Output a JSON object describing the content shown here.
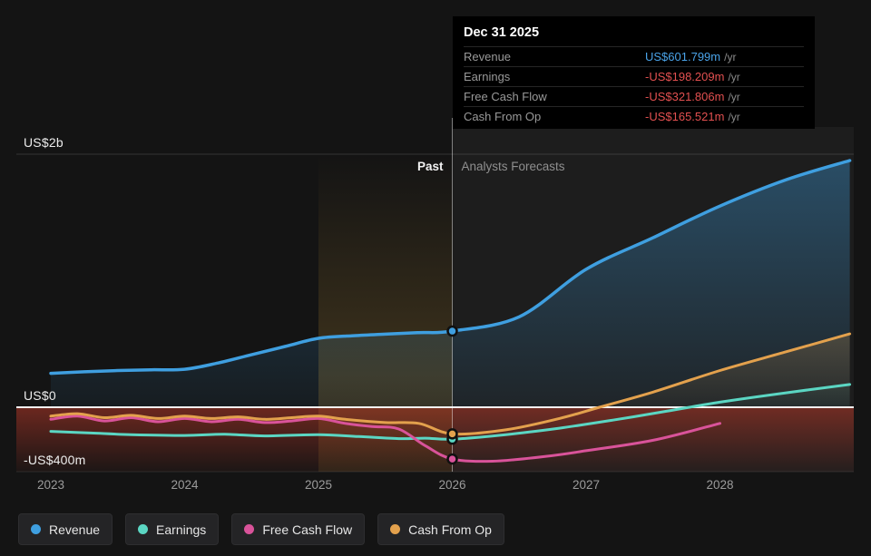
{
  "tooltip": {
    "date": "Dec 31 2025",
    "rows": [
      {
        "label": "Revenue",
        "value": "US$601.799m",
        "suffix": "/yr",
        "value_color": "#4aa3e8"
      },
      {
        "label": "Earnings",
        "value": "-US$198.209m",
        "suffix": "/yr",
        "value_color": "#e25050"
      },
      {
        "label": "Free Cash Flow",
        "value": "-US$321.806m",
        "suffix": "/yr",
        "value_color": "#e25050"
      },
      {
        "label": "Cash From Op",
        "value": "-US$165.521m",
        "suffix": "/yr",
        "value_color": "#e25050"
      }
    ]
  },
  "annotations": {
    "past": "Past",
    "forecast": "Analysts Forecasts"
  },
  "axis": {
    "y_labels": [
      {
        "text": "US$2b",
        "value_m": 2000
      },
      {
        "text": "US$0",
        "value_m": 0
      },
      {
        "text": "-US$400m",
        "value_m": -400
      }
    ],
    "x_labels": [
      "2023",
      "2024",
      "2025",
      "2026",
      "2027",
      "2028"
    ]
  },
  "legend": [
    {
      "label": "Revenue",
      "color": "#3f9fe0"
    },
    {
      "label": "Earnings",
      "color": "#5bd6c3"
    },
    {
      "label": "Free Cash Flow",
      "color": "#d9539a"
    },
    {
      "label": "Cash From Op",
      "color": "#e3a14d"
    }
  ],
  "chart_data": {
    "type": "line",
    "title": "Past and forecast Revenue, Earnings, Free Cash Flow and Cash From Op",
    "x_start": 2023,
    "x_end": 2028.97,
    "x_ticks": [
      2023,
      2024,
      2025,
      2026,
      2027,
      2028
    ],
    "divider_x": 2026.0,
    "divider_date": "Dec 31 2025",
    "y_axis": {
      "pos_max_m": 2000,
      "neg_min_m": -400,
      "unit": "US$ millions"
    },
    "series": [
      {
        "name": "Revenue",
        "color": "#3f9fe0",
        "width": 3.5,
        "fill_to_zero": true,
        "marker_value_m": 601.799,
        "points": [
          [
            2023,
            268
          ],
          [
            2023.25,
            280
          ],
          [
            2023.5,
            290
          ],
          [
            2023.75,
            296
          ],
          [
            2024,
            300
          ],
          [
            2024.25,
            350
          ],
          [
            2024.5,
            415
          ],
          [
            2024.75,
            480
          ],
          [
            2025,
            545
          ],
          [
            2025.25,
            565
          ],
          [
            2025.5,
            578
          ],
          [
            2025.75,
            590
          ],
          [
            2026,
            601.799
          ],
          [
            2026.5,
            715
          ],
          [
            2027,
            1090
          ],
          [
            2027.5,
            1340
          ],
          [
            2028,
            1590
          ],
          [
            2028.5,
            1800
          ],
          [
            2028.97,
            1950
          ]
        ]
      },
      {
        "name": "Earnings",
        "color": "#5bd6c3",
        "width": 3,
        "fill_positive": true,
        "marker_value_m": -198.209,
        "points": [
          [
            2023,
            -150
          ],
          [
            2023.3,
            -160
          ],
          [
            2023.6,
            -170
          ],
          [
            2024,
            -175
          ],
          [
            2024.3,
            -168
          ],
          [
            2024.6,
            -178
          ],
          [
            2025,
            -170
          ],
          [
            2025.3,
            -182
          ],
          [
            2025.6,
            -195
          ],
          [
            2025.8,
            -192
          ],
          [
            2026,
            -198.209
          ],
          [
            2026.4,
            -170
          ],
          [
            2026.8,
            -130
          ],
          [
            2027.2,
            -80
          ],
          [
            2027.6,
            -25
          ],
          [
            2028,
            40
          ],
          [
            2028.5,
            115
          ],
          [
            2028.97,
            180
          ]
        ]
      },
      {
        "name": "Free Cash Flow",
        "color": "#d9539a",
        "width": 3,
        "marker_value_m": -321.806,
        "points": [
          [
            2023,
            -75
          ],
          [
            2023.2,
            -55
          ],
          [
            2023.4,
            -85
          ],
          [
            2023.6,
            -65
          ],
          [
            2023.8,
            -90
          ],
          [
            2024,
            -70
          ],
          [
            2024.2,
            -90
          ],
          [
            2024.4,
            -75
          ],
          [
            2024.6,
            -95
          ],
          [
            2024.8,
            -85
          ],
          [
            2025,
            -70
          ],
          [
            2025.2,
            -100
          ],
          [
            2025.4,
            -120
          ],
          [
            2025.6,
            -135
          ],
          [
            2025.8,
            -240
          ],
          [
            2026,
            -321.806
          ],
          [
            2026.3,
            -335
          ],
          [
            2026.7,
            -305
          ],
          [
            2027,
            -270
          ],
          [
            2027.5,
            -205
          ],
          [
            2028,
            -100
          ]
        ]
      },
      {
        "name": "Cash From Op",
        "color": "#e3a14d",
        "width": 3,
        "fill_positive": true,
        "marker_value_m": -165.521,
        "points": [
          [
            2023,
            -55
          ],
          [
            2023.2,
            -40
          ],
          [
            2023.4,
            -65
          ],
          [
            2023.6,
            -50
          ],
          [
            2023.8,
            -70
          ],
          [
            2024,
            -55
          ],
          [
            2024.2,
            -70
          ],
          [
            2024.4,
            -60
          ],
          [
            2024.6,
            -75
          ],
          [
            2024.8,
            -65
          ],
          [
            2025,
            -55
          ],
          [
            2025.2,
            -75
          ],
          [
            2025.5,
            -95
          ],
          [
            2025.75,
            -100
          ],
          [
            2026,
            -165.521
          ],
          [
            2026.4,
            -140
          ],
          [
            2026.8,
            -70
          ],
          [
            2027.1,
            0
          ],
          [
            2027.5,
            120
          ],
          [
            2028,
            290
          ],
          [
            2028.5,
            440
          ],
          [
            2028.97,
            580
          ]
        ]
      }
    ]
  }
}
